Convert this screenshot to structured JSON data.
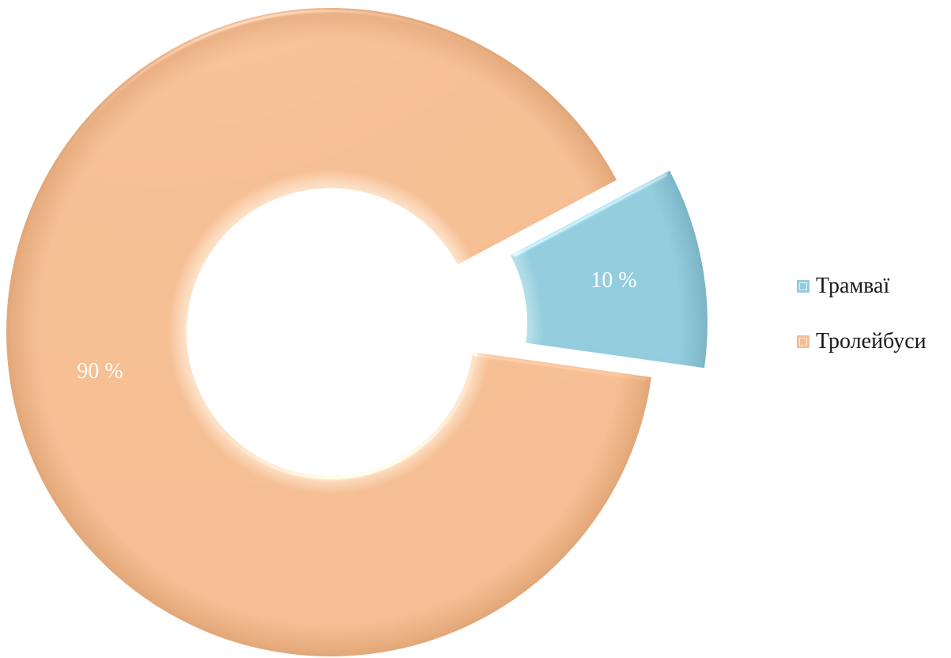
{
  "chart_data": {
    "type": "pie",
    "variant": "donut",
    "exploded": "Трамваї",
    "series": [
      {
        "name": "",
        "categories": [
          "Трамваї",
          "Тролейбуси"
        ],
        "values": [
          10,
          90
        ],
        "labels": [
          "10 %",
          "90 %"
        ],
        "colors": [
          "#93cddd",
          "#f5be93"
        ]
      }
    ],
    "title": "",
    "legend": {
      "position": "right",
      "entries": [
        "Трамваї",
        "Тролейбуси"
      ]
    }
  }
}
